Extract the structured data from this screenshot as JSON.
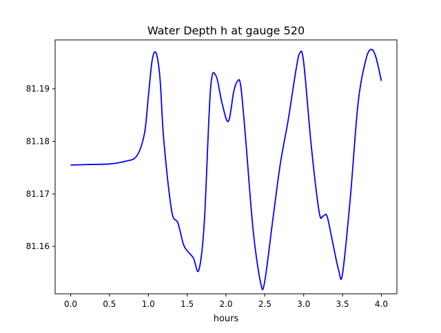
{
  "chart_data": {
    "type": "line",
    "title": "Water Depth h at gauge 520",
    "xlabel": "hours",
    "ylabel": "",
    "xlim": [
      -0.2,
      4.2
    ],
    "ylim": [
      81.151,
      81.1993
    ],
    "x_ticks": [
      0.0,
      0.5,
      1.0,
      1.5,
      2.0,
      2.5,
      3.0,
      3.5,
      4.0
    ],
    "x_tick_labels": [
      "0.0",
      "0.5",
      "1.0",
      "1.5",
      "2.0",
      "2.5",
      "3.0",
      "3.5",
      "4.0"
    ],
    "y_ticks": [
      81.16,
      81.17,
      81.18,
      81.19
    ],
    "y_tick_labels": [
      "81.16",
      "81.17",
      "81.18",
      "81.19"
    ],
    "grid": false,
    "series": [
      {
        "color": "#0000ff",
        "x": [
          0.0,
          0.25,
          0.5,
          0.7,
          0.85,
          0.95,
          1.0,
          1.05,
          1.1,
          1.15,
          1.2,
          1.3,
          1.38,
          1.45,
          1.5,
          1.58,
          1.65,
          1.72,
          1.8,
          1.87,
          1.95,
          2.03,
          2.1,
          2.15,
          2.19,
          2.25,
          2.35,
          2.45,
          2.5,
          2.6,
          2.7,
          2.8,
          2.9,
          2.95,
          3.0,
          3.1,
          3.2,
          3.25,
          3.3,
          3.37,
          3.45,
          3.5,
          3.6,
          3.7,
          3.8,
          3.87,
          3.93,
          4.0
        ],
        "y": [
          81.1755,
          81.1756,
          81.1757,
          81.1762,
          81.1772,
          81.1815,
          81.1885,
          81.1955,
          81.1968,
          81.192,
          81.18,
          81.1668,
          81.1645,
          81.1605,
          81.1592,
          81.1578,
          81.1555,
          81.1645,
          81.1898,
          81.1925,
          81.1872,
          81.1838,
          81.1895,
          81.1915,
          81.1905,
          81.181,
          81.163,
          81.1528,
          81.1535,
          81.1648,
          81.1758,
          81.184,
          81.1935,
          81.1968,
          81.195,
          81.1788,
          81.1665,
          81.1658,
          81.1658,
          81.161,
          81.1555,
          81.1548,
          81.1692,
          81.1872,
          81.1955,
          81.1975,
          81.196,
          81.1915
        ]
      }
    ]
  }
}
